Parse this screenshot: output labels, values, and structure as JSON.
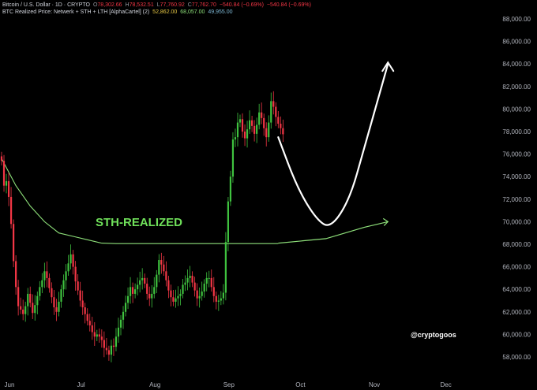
{
  "header": {
    "line1": {
      "symbol": "Bitcoin / U.S. Dollar · 1D · CRYPTO",
      "o_key": "O",
      "o": "78,302.66",
      "h_key": "H",
      "h": "78,532.51",
      "l_key": "L",
      "l": "77,760.92",
      "c_key": "C",
      "c": "77,762.70",
      "change": "−540.84 (−0.69%)",
      "change2": "−540.84 (−0.69%)"
    },
    "line2": {
      "indicator": "BTC Realized Price: Netwerk + STH + LTH [AlphaCartel] (2)",
      "v1": "52,862.00",
      "v2": "68,057.00",
      "v3": "49,955.00"
    }
  },
  "colors": {
    "background": "#000000",
    "candle_up": "#26a69a",
    "candle_up_bright": "#3fc23f",
    "candle_down": "#f23645",
    "sth_line": "#8ee07a",
    "annotation_text": "#6fe05a",
    "projection": "#ffffff",
    "v1": "#e7c845",
    "v2": "#8ee07a",
    "v3": "#7fb9d6"
  },
  "annotation": {
    "label": "STH-REALIZED"
  },
  "watermark": "@cryptogoos",
  "chart_data": {
    "type": "candlestick",
    "title": "Bitcoin / U.S. Dollar · 1D · CRYPTO",
    "y_ticks": [
      "88,000.00",
      "86,000.00",
      "84,000.00",
      "82,000.00",
      "80,000.00",
      "78,000.00",
      "76,000.00",
      "74,000.00",
      "72,000.00",
      "70,000.00",
      "68,000.00",
      "66,000.00",
      "64,000.00",
      "62,000.00",
      "60,000.00",
      "58,000.00"
    ],
    "x_ticks": [
      "Jun",
      "Jul",
      "Aug",
      "Sep",
      "Oct",
      "Nov",
      "Dec"
    ],
    "ylim": [
      57000,
      89000
    ],
    "series": [
      {
        "kind": "candles",
        "days_from_jun1_start": 0,
        "close": [
          75400,
          73200,
          73600,
          72200,
          69800,
          66500,
          64200,
          62500,
          62200,
          61800,
          62500,
          63600,
          62800,
          61900,
          62600,
          63400,
          64200,
          64800,
          65600,
          65000,
          64100,
          63300,
          62400,
          62000,
          62900,
          64000,
          64800,
          65600,
          66300,
          67100,
          66000,
          64700,
          63900,
          63000,
          62400,
          61800,
          61200,
          60800,
          60200,
          59800,
          60000,
          59800,
          59500,
          58800,
          58600,
          58200,
          59000,
          58900,
          59800,
          60600,
          61300,
          62000,
          62800,
          63400,
          64200,
          63600,
          64000,
          64400,
          64800,
          65000,
          64500,
          63600,
          63200,
          63600,
          64200,
          65300,
          66600,
          66200,
          65600,
          64800,
          63900,
          63300,
          62900,
          63200,
          63400,
          63600,
          64400,
          64600,
          65000,
          65200,
          64600,
          63900,
          63200,
          63400,
          63800,
          64500,
          65000,
          65000,
          64200,
          63400,
          62900,
          63000,
          63200,
          63700,
          68200,
          71800,
          74000,
          77300,
          77500,
          78800,
          79100,
          78000,
          77400,
          78200,
          79000,
          78500,
          77800,
          78600,
          79700,
          79200,
          78300,
          77500,
          78800,
          80700,
          80200,
          79300,
          78700,
          78300,
          77762
        ],
        "open": [
          75800,
          75400,
          73200,
          73600,
          72200,
          69800,
          66500,
          64200,
          62500,
          62200,
          61800,
          62500,
          63600,
          62800,
          61900,
          62600,
          63400,
          64200,
          64800,
          65600,
          65000,
          64100,
          63300,
          62400,
          62000,
          62900,
          64000,
          64800,
          65600,
          66300,
          67100,
          66000,
          64700,
          63900,
          63000,
          62400,
          61800,
          61200,
          60800,
          60200,
          59800,
          60000,
          59800,
          59500,
          58800,
          58600,
          58200,
          59000,
          58900,
          59800,
          60600,
          61300,
          62000,
          62800,
          63400,
          64200,
          63600,
          64000,
          64400,
          64800,
          65000,
          64500,
          63600,
          63200,
          63600,
          64200,
          65300,
          66600,
          66200,
          65600,
          64800,
          63900,
          63300,
          62900,
          63200,
          63400,
          63600,
          64400,
          64600,
          65000,
          65200,
          64600,
          63900,
          63200,
          63400,
          63800,
          64500,
          65000,
          65000,
          64200,
          63400,
          62900,
          63000,
          63200,
          63700,
          68200,
          71800,
          74000,
          77300,
          77500,
          78800,
          79100,
          78000,
          77400,
          78200,
          79000,
          78500,
          77800,
          78600,
          79700,
          79200,
          78300,
          77500,
          78800,
          80700,
          80200,
          79300,
          78700,
          78302
        ]
      },
      {
        "name": "STH",
        "kind": "line",
        "points": [
          [
            0,
            75600
          ],
          [
            6,
            73200
          ],
          [
            12,
            71400
          ],
          [
            18,
            70000
          ],
          [
            24,
            69000
          ],
          [
            30,
            68700
          ],
          [
            36,
            68400
          ],
          [
            42,
            68100
          ],
          [
            48,
            68057
          ],
          [
            60,
            68057
          ],
          [
            72,
            68057
          ],
          [
            84,
            68057
          ],
          [
            96,
            68057
          ],
          [
            110,
            68057
          ],
          [
            116,
            68057
          ]
        ]
      }
    ],
    "projections": [
      {
        "kind": "curve",
        "points": [
          [
            116,
            77500
          ],
          [
            124,
            73000
          ],
          [
            132,
            70200
          ],
          [
            138,
            69400
          ],
          [
            146,
            72000
          ],
          [
            152,
            76500
          ],
          [
            158,
            81000
          ],
          [
            162,
            84000
          ]
        ]
      },
      {
        "kind": "arrow",
        "points": [
          [
            116,
            68100
          ],
          [
            136,
            68500
          ],
          [
            152,
            69500
          ],
          [
            162,
            70000
          ]
        ]
      }
    ]
  }
}
